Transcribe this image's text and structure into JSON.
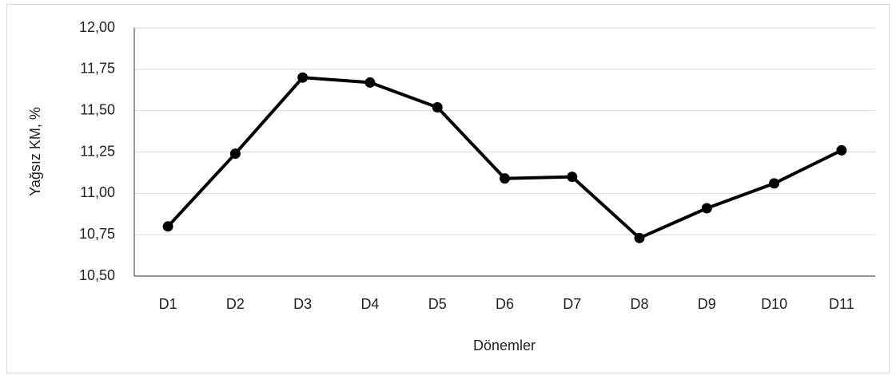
{
  "chart_data": {
    "type": "line",
    "x_label": "Dönemler",
    "y_label": "Yağsız KM, %",
    "categories": [
      "D1",
      "D2",
      "D3",
      "D4",
      "D5",
      "D6",
      "D7",
      "D8",
      "D9",
      "D10",
      "D11"
    ],
    "series": [
      {
        "name": "Yağsız KM",
        "color": "#000000",
        "values": [
          10.8,
          11.24,
          11.7,
          11.67,
          11.52,
          11.09,
          11.1,
          10.73,
          10.91,
          11.06,
          11.26
        ]
      }
    ],
    "ylim": [
      10.5,
      12.0
    ],
    "yticks": [
      {
        "value": 10.5,
        "label": "10,50"
      },
      {
        "value": 10.75,
        "label": "10,75"
      },
      {
        "value": 11.0,
        "label": "11,00"
      },
      {
        "value": 11.25,
        "label": "11,25"
      },
      {
        "value": 11.5,
        "label": "11,50"
      },
      {
        "value": 11.75,
        "label": "11,75"
      },
      {
        "value": 12.0,
        "label": "12,00"
      }
    ],
    "grid": true
  }
}
